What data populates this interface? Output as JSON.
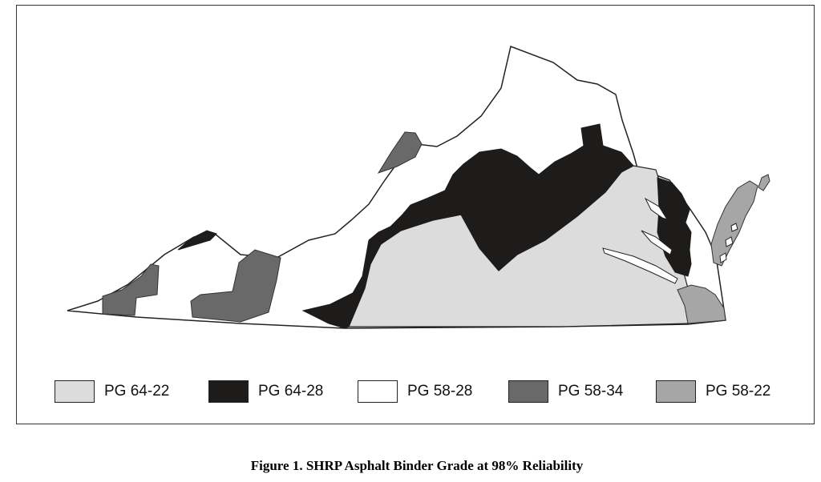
{
  "figure": {
    "caption": "Figure 1.  SHRP Asphalt Binder Grade at 98% Reliability"
  },
  "map": {
    "regions": [
      {
        "name": "state-base",
        "grade": "PG 58-28"
      },
      {
        "name": "far-southwest",
        "grade": "PG 58-34"
      },
      {
        "name": "southwest",
        "grade": "PG 58-34"
      },
      {
        "name": "northern-valley",
        "grade": "PG 58-34"
      },
      {
        "name": "southwest-tip",
        "grade": "PG 64-28"
      },
      {
        "name": "central-belt",
        "grade": "PG 64-28"
      },
      {
        "name": "northern-neck",
        "grade": "PG 64-28"
      },
      {
        "name": "piedmont-coastal",
        "grade": "PG 64-22"
      },
      {
        "name": "hampton-roads",
        "grade": "PG 58-22"
      },
      {
        "name": "eastern-shore",
        "grade": "PG 58-22"
      }
    ]
  },
  "legend": {
    "items": [
      {
        "label": "PG 64-22",
        "color": "#dcdcdc"
      },
      {
        "label": "PG 64-28",
        "color": "#1e1c1b"
      },
      {
        "label": "PG 58-28",
        "color": "#ffffff"
      },
      {
        "label": "PG 58-34",
        "color": "#696969"
      },
      {
        "label": "PG 58-22",
        "color": "#a6a6a6"
      }
    ]
  }
}
